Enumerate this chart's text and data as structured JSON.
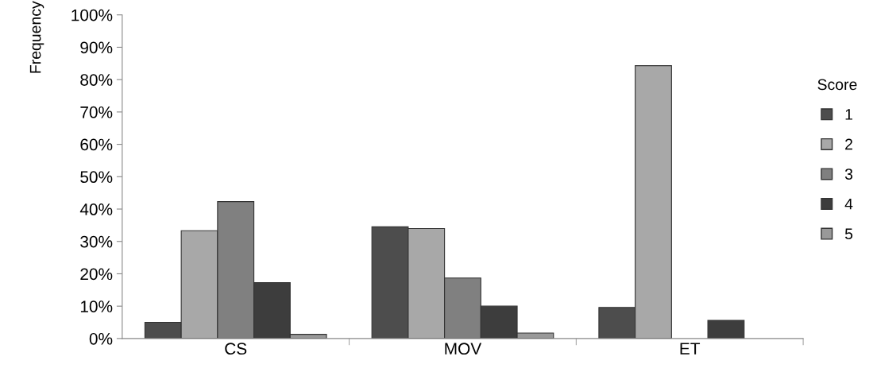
{
  "chart_data": {
    "type": "bar",
    "ylabel": "Frequency",
    "legend_title": "Score",
    "legend": "right",
    "grid": false,
    "categories": [
      "CS",
      "MOV",
      "ET"
    ],
    "series": [
      {
        "name": "1",
        "color": "#4d4d4d",
        "values": [
          5,
          34.5,
          9.6
        ]
      },
      {
        "name": "2",
        "color": "#a8a8a8",
        "values": [
          33.3,
          34,
          84.3
        ]
      },
      {
        "name": "3",
        "color": "#808080",
        "values": [
          42.3,
          18.7,
          null
        ]
      },
      {
        "name": "4",
        "color": "#3d3d3d",
        "values": [
          17.3,
          10,
          5.6
        ]
      },
      {
        "name": "5",
        "color": "#999999",
        "values": [
          1.3,
          1.7,
          null
        ]
      }
    ],
    "ylim": [
      0,
      100
    ],
    "yticks": [
      {
        "value": 0,
        "label": "0%"
      },
      {
        "value": 10,
        "label": "10%"
      },
      {
        "value": 20,
        "label": "20%"
      },
      {
        "value": 30,
        "label": "30%"
      },
      {
        "value": 40,
        "label": "40%"
      },
      {
        "value": 50,
        "label": "50%"
      },
      {
        "value": 60,
        "label": "60%"
      },
      {
        "value": 70,
        "label": "70%"
      },
      {
        "value": 80,
        "label": "80%"
      },
      {
        "value": 90,
        "label": "90%"
      },
      {
        "value": 100,
        "label": "100%"
      }
    ]
  }
}
